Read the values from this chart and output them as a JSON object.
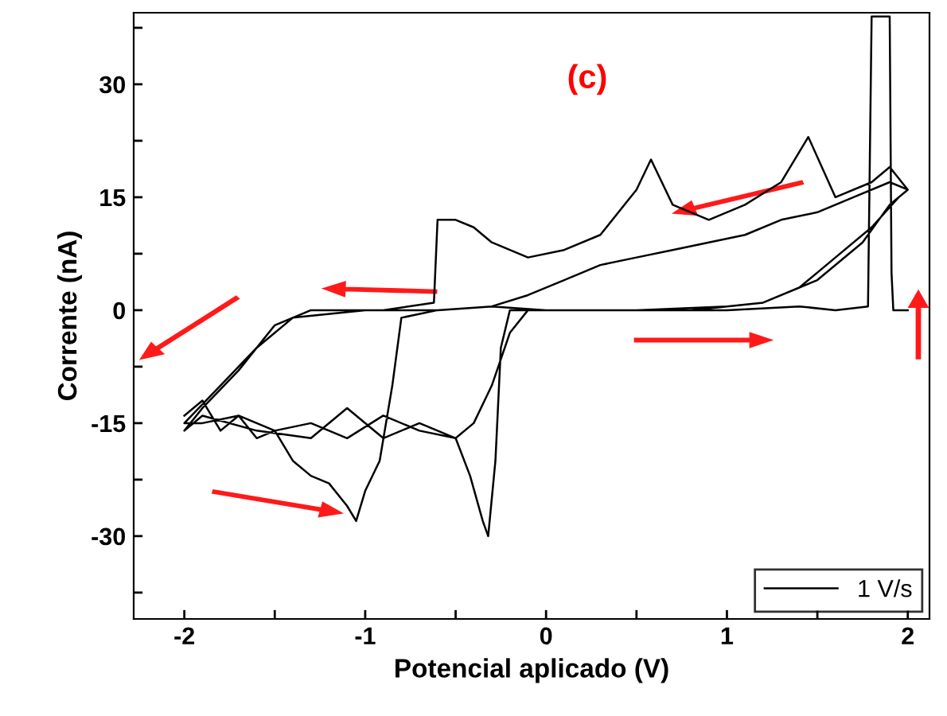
{
  "chart_data": {
    "type": "line",
    "xlabel": "Potencial aplicado (V)",
    "ylabel": "Corrente (nA)",
    "annotations": [
      "(c)"
    ],
    "legend": "bottom right",
    "grid": false,
    "marker": "none",
    "line_style": "solid",
    "xlim": [
      -2.28,
      2.12
    ],
    "ylim": [
      -41,
      39.5
    ],
    "xticks": [
      -2,
      {
        "value": -1.5,
        "label": null
      },
      -1,
      {
        "value": -0.5,
        "label": null
      },
      0,
      {
        "value": 0.5,
        "label": null
      },
      1,
      {
        "value": 1.5,
        "label": null
      },
      2
    ],
    "yticks": [
      {
        "value": -37.5,
        "label": null
      },
      -30,
      {
        "value": -22.5,
        "label": null
      },
      -15,
      {
        "value": -7.5,
        "label": null
      },
      0,
      {
        "value": 7.5,
        "label": null
      },
      15,
      {
        "value": 22.5,
        "label": null
      },
      30,
      {
        "value": 37.5,
        "label": null
      }
    ],
    "series": [
      {
        "name": "1 V/s",
        "color": "#000000",
        "x": [
          -2.0,
          -1.9,
          -1.8,
          -1.7,
          -1.6,
          -1.5,
          -1.4,
          -1.3,
          -1.2,
          -1.1,
          -1.05,
          -1.0,
          -0.92,
          -0.85,
          -0.8,
          -0.6,
          -0.3,
          0,
          0.5,
          1.0,
          1.2,
          1.4,
          1.6,
          1.8,
          1.95,
          2.0,
          1.9,
          1.7,
          1.5,
          1.3,
          1.1,
          0.9,
          0.7,
          0.5,
          0.3,
          0.1,
          -0.1,
          -0.3,
          -0.6,
          -1.0,
          -1.4,
          -1.6,
          -1.8,
          -2.0,
          -1.9,
          -1.7,
          -1.5,
          -1.3,
          -1.1,
          -0.9,
          -0.7,
          -0.5,
          -0.42,
          -0.35,
          -0.32,
          -0.28,
          -0.25,
          -0.2,
          0.3,
          0.8,
          1.2,
          1.5,
          1.75,
          1.9,
          2.0,
          1.9,
          1.8,
          1.6,
          1.45,
          1.3,
          1.1,
          0.9,
          0.7,
          0.58,
          0.5,
          0.3,
          0.1,
          -0.1,
          -0.3,
          -0.4,
          -0.5,
          -0.6,
          -0.62,
          -0.9,
          -1.3,
          -1.5,
          -1.7,
          -1.9,
          -2.0,
          -1.9,
          -1.6,
          -1.3,
          -1.1,
          -0.9,
          -0.7,
          -0.5,
          -0.4,
          -0.3,
          -0.2,
          -0.1,
          0.5,
          1.0,
          1.4,
          1.6,
          1.78,
          1.8,
          1.9,
          1.91,
          1.92,
          2.0
        ],
        "values": [
          -14,
          -12,
          -16,
          -14,
          -17,
          -16,
          -20,
          -22,
          -23,
          -26,
          -28,
          -24,
          -20,
          -10,
          -1,
          0,
          0.5,
          0,
          0,
          0.5,
          1,
          3,
          7,
          11,
          15,
          16,
          17,
          15,
          13,
          12,
          10,
          9,
          8,
          7,
          6,
          4,
          2,
          0.5,
          0,
          0,
          -1,
          -5,
          -10,
          -15,
          -15,
          -14,
          -16,
          -15,
          -17,
          -14,
          -16,
          -17,
          -22,
          -28,
          -30,
          -20,
          -5,
          0,
          0,
          0,
          1,
          4,
          9,
          14,
          16,
          19,
          17,
          15,
          23,
          17,
          14,
          12,
          14,
          20,
          16,
          10,
          8,
          7,
          9,
          11,
          12,
          12,
          1,
          0,
          0,
          -2,
          -8,
          -13,
          -16,
          -14,
          -16,
          -17,
          -13,
          -17,
          -15,
          -17,
          -15,
          -10,
          -3,
          0,
          0,
          0,
          0.5,
          0,
          0.5,
          39,
          39,
          5,
          0,
          0
        ]
      }
    ]
  }
}
